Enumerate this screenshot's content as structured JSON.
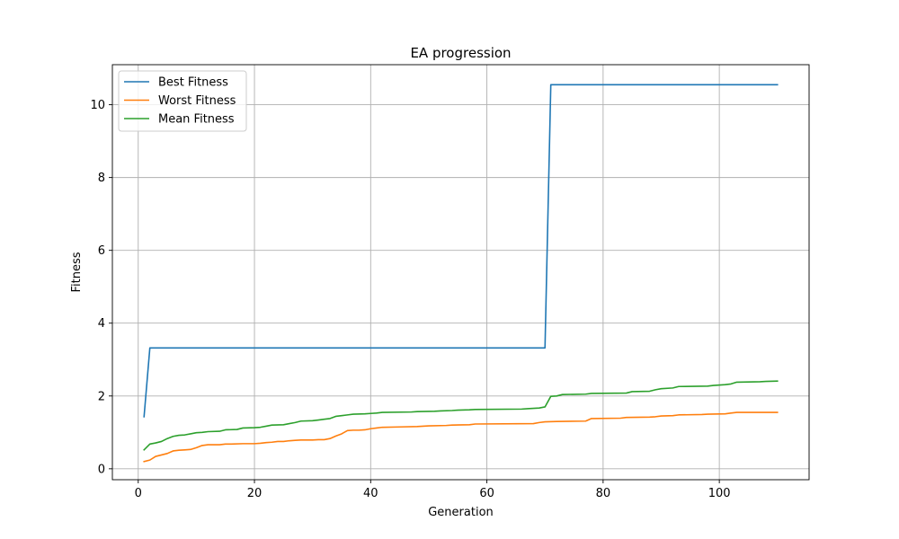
{
  "chart_data": {
    "type": "line",
    "title": "EA progression",
    "xlabel": "Generation",
    "ylabel": "Fitness",
    "xlim": [
      -4.45,
      115.45
    ],
    "ylim": [
      -0.3,
      11.1
    ],
    "xticks": [
      0,
      20,
      40,
      60,
      80,
      100
    ],
    "yticks": [
      0,
      2,
      4,
      6,
      8,
      10
    ],
    "grid": true,
    "legend_location": "upper left",
    "series": [
      {
        "name": "Best Fitness",
        "color": "#1f77b4",
        "x": [
          1,
          2,
          70,
          71,
          110
        ],
        "y": [
          1.43,
          3.32,
          3.32,
          10.55,
          10.55
        ]
      },
      {
        "name": "Worst Fitness",
        "color": "#ff7f0e",
        "x": [
          1,
          2,
          3,
          4,
          5,
          6,
          7,
          8,
          9,
          10,
          11,
          12,
          14,
          15,
          16,
          18,
          19,
          20,
          21,
          22,
          23,
          24,
          25,
          26,
          27,
          28,
          30,
          31,
          32,
          33,
          34,
          35,
          36,
          37,
          38,
          39,
          40,
          41,
          42,
          45,
          48,
          49,
          50,
          53,
          54,
          57,
          58,
          68,
          69,
          70,
          72,
          77,
          78,
          83,
          84,
          88,
          89,
          90,
          92,
          93,
          97,
          98,
          101,
          102,
          103,
          110
        ],
        "y": [
          0.2,
          0.24,
          0.34,
          0.38,
          0.42,
          0.49,
          0.51,
          0.52,
          0.53,
          0.58,
          0.64,
          0.66,
          0.66,
          0.68,
          0.68,
          0.69,
          0.69,
          0.69,
          0.7,
          0.72,
          0.73,
          0.75,
          0.75,
          0.77,
          0.78,
          0.79,
          0.79,
          0.8,
          0.8,
          0.83,
          0.9,
          0.96,
          1.05,
          1.06,
          1.06,
          1.07,
          1.1,
          1.12,
          1.14,
          1.15,
          1.16,
          1.17,
          1.18,
          1.19,
          1.2,
          1.21,
          1.23,
          1.24,
          1.27,
          1.29,
          1.3,
          1.31,
          1.38,
          1.39,
          1.41,
          1.42,
          1.43,
          1.45,
          1.46,
          1.48,
          1.49,
          1.5,
          1.51,
          1.53,
          1.55,
          1.55
        ]
      },
      {
        "name": "Mean Fitness",
        "color": "#2ca02c",
        "x": [
          1,
          2,
          3,
          4,
          5,
          6,
          7,
          8,
          9,
          10,
          11,
          12,
          14,
          15,
          17,
          18,
          20,
          21,
          22,
          23,
          25,
          26,
          27,
          28,
          30,
          31,
          32,
          33,
          34,
          35,
          36,
          37,
          39,
          40,
          41,
          42,
          47,
          48,
          51,
          52,
          54,
          55,
          57,
          58,
          66,
          67,
          69,
          70,
          71,
          72,
          73,
          77,
          78,
          84,
          85,
          88,
          89,
          90,
          92,
          93,
          98,
          99,
          101,
          102,
          103,
          107,
          108,
          110
        ],
        "y": [
          0.52,
          0.68,
          0.71,
          0.75,
          0.83,
          0.89,
          0.92,
          0.93,
          0.96,
          0.99,
          1.0,
          1.02,
          1.03,
          1.07,
          1.08,
          1.12,
          1.13,
          1.14,
          1.17,
          1.2,
          1.21,
          1.24,
          1.27,
          1.31,
          1.32,
          1.34,
          1.36,
          1.38,
          1.44,
          1.46,
          1.48,
          1.5,
          1.51,
          1.52,
          1.53,
          1.55,
          1.56,
          1.57,
          1.58,
          1.59,
          1.6,
          1.61,
          1.62,
          1.63,
          1.64,
          1.65,
          1.67,
          1.7,
          1.99,
          2.0,
          2.04,
          2.05,
          2.07,
          2.08,
          2.12,
          2.13,
          2.17,
          2.2,
          2.22,
          2.26,
          2.27,
          2.29,
          2.31,
          2.33,
          2.38,
          2.39,
          2.4,
          2.41
        ]
      }
    ]
  }
}
